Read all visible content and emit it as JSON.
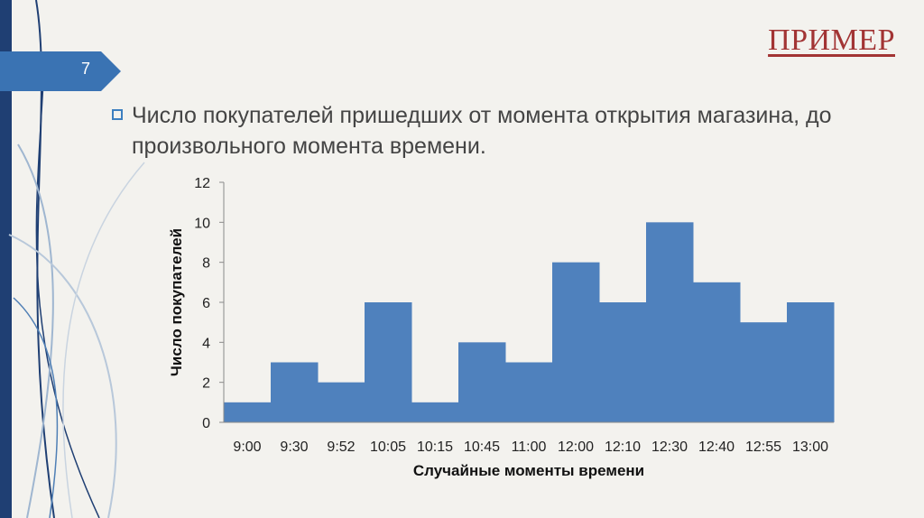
{
  "slide": {
    "number": "7",
    "title": "ПРИМЕР",
    "bullet": "Число покупателей пришедших от момента открытия магазина, до произвольного момента времени."
  },
  "colors": {
    "bar": "#4f81bd",
    "title": "#a23434",
    "accent_tab": "#3a73b3",
    "left_bar": "#1f3f73"
  },
  "chart_data": {
    "type": "bar",
    "categories": [
      "9:00",
      "9:30",
      "9:52",
      "10:05",
      "10:15",
      "10:45",
      "11:00",
      "12:00",
      "12:10",
      "12:30",
      "12:40",
      "12:55",
      "13:00"
    ],
    "values": [
      1,
      3,
      2,
      6,
      1,
      4,
      3,
      8,
      6,
      10,
      7,
      5,
      6
    ],
    "xlabel": "Случайные моменты времени",
    "ylabel": "Число покупателей",
    "ylim": [
      0,
      12
    ],
    "yticks": [
      0,
      2,
      4,
      6,
      8,
      10,
      12
    ],
    "grid": false,
    "legend": "none"
  }
}
